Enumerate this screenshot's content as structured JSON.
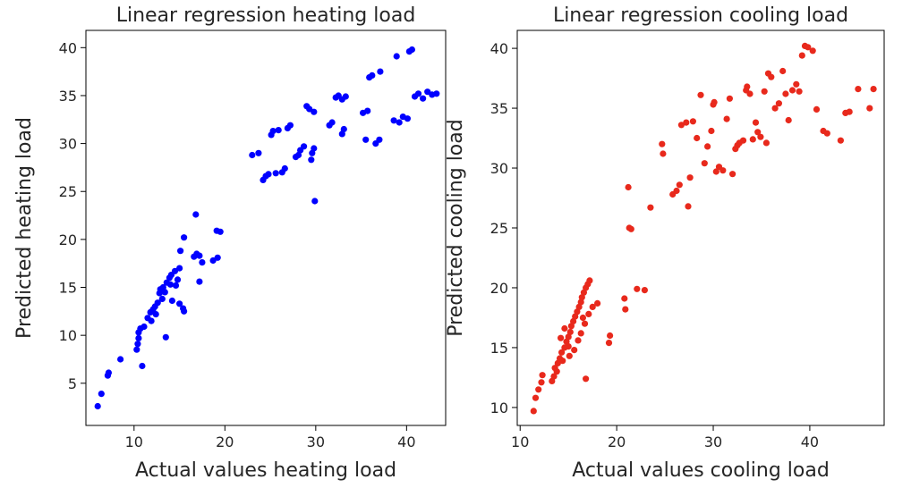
{
  "chart_data": [
    {
      "type": "scatter",
      "title": "Linear regression heating load",
      "xlabel": "Actual values heating load",
      "ylabel": "Predicted heating load",
      "xlim": [
        4.7,
        44.3
      ],
      "ylim": [
        0.6,
        41.8
      ],
      "xticks": [
        10,
        20,
        30,
        40
      ],
      "yticks": [
        5,
        10,
        15,
        20,
        25,
        30,
        35,
        40
      ],
      "grid": false,
      "color": "#0000ff",
      "series": [
        {
          "points": [
            [
              6.0,
              2.6
            ],
            [
              6.4,
              3.9
            ],
            [
              7.1,
              5.8
            ],
            [
              7.2,
              6.1
            ],
            [
              8.5,
              7.5
            ],
            [
              10.3,
              8.5
            ],
            [
              10.4,
              9.1
            ],
            [
              10.5,
              9.7
            ],
            [
              10.9,
              6.8
            ],
            [
              10.5,
              10.3
            ],
            [
              10.7,
              10.7
            ],
            [
              11.1,
              10.9
            ],
            [
              11.5,
              11.8
            ],
            [
              11.8,
              12.4
            ],
            [
              12.1,
              12.7
            ],
            [
              12.3,
              13.0
            ],
            [
              12.6,
              13.4
            ],
            [
              12.8,
              14.4
            ],
            [
              12.9,
              14.8
            ],
            [
              13.2,
              15.0
            ],
            [
              13.6,
              15.5
            ],
            [
              13.9,
              16.0
            ],
            [
              14.1,
              16.3
            ],
            [
              14.5,
              16.7
            ],
            [
              14.8,
              15.8
            ],
            [
              14.0,
              15.3
            ],
            [
              13.4,
              14.5
            ],
            [
              13.5,
              9.8
            ],
            [
              14.2,
              13.6
            ],
            [
              15.0,
              13.3
            ],
            [
              15.4,
              12.8
            ],
            [
              15.5,
              12.5
            ],
            [
              15.0,
              17.0
            ],
            [
              15.1,
              18.8
            ],
            [
              15.5,
              20.2
            ],
            [
              16.6,
              18.2
            ],
            [
              16.9,
              18.5
            ],
            [
              17.2,
              18.3
            ],
            [
              17.5,
              17.6
            ],
            [
              17.2,
              15.6
            ],
            [
              16.8,
              22.6
            ],
            [
              18.7,
              17.8
            ],
            [
              19.2,
              18.1
            ],
            [
              19.1,
              20.9
            ],
            [
              19.5,
              20.8
            ],
            [
              12.4,
              12.2
            ],
            [
              11.9,
              11.5
            ],
            [
              13.1,
              13.8
            ],
            [
              14.6,
              15.2
            ],
            [
              23.0,
              28.8
            ],
            [
              23.7,
              29.0
            ],
            [
              24.2,
              26.2
            ],
            [
              24.5,
              26.6
            ],
            [
              24.8,
              26.8
            ],
            [
              25.1,
              30.9
            ],
            [
              25.3,
              31.3
            ],
            [
              25.6,
              26.9
            ],
            [
              25.9,
              31.4
            ],
            [
              26.3,
              27.0
            ],
            [
              26.6,
              27.4
            ],
            [
              26.9,
              31.6
            ],
            [
              27.2,
              31.9
            ],
            [
              27.8,
              28.6
            ],
            [
              28.1,
              28.8
            ],
            [
              28.3,
              29.3
            ],
            [
              28.7,
              29.7
            ],
            [
              29.0,
              33.9
            ],
            [
              29.3,
              33.6
            ],
            [
              29.5,
              28.3
            ],
            [
              29.6,
              29.0
            ],
            [
              29.8,
              29.5
            ],
            [
              29.9,
              24.0
            ],
            [
              29.8,
              33.3
            ],
            [
              31.5,
              31.9
            ],
            [
              31.8,
              32.2
            ],
            [
              32.2,
              34.8
            ],
            [
              32.5,
              35.0
            ],
            [
              32.9,
              34.6
            ],
            [
              33.1,
              31.5
            ],
            [
              32.9,
              31.0
            ],
            [
              33.3,
              34.9
            ],
            [
              35.2,
              33.2
            ],
            [
              35.5,
              30.4
            ],
            [
              35.7,
              33.4
            ],
            [
              35.9,
              36.9
            ],
            [
              36.2,
              37.1
            ],
            [
              36.6,
              30.0
            ],
            [
              37.0,
              30.4
            ],
            [
              37.1,
              37.5
            ],
            [
              38.6,
              32.4
            ],
            [
              38.9,
              39.1
            ],
            [
              39.2,
              32.2
            ],
            [
              39.6,
              32.8
            ],
            [
              40.1,
              32.6
            ],
            [
              40.3,
              39.6
            ],
            [
              40.6,
              39.8
            ],
            [
              40.9,
              34.9
            ],
            [
              41.3,
              35.2
            ],
            [
              41.8,
              34.7
            ],
            [
              42.3,
              35.4
            ],
            [
              42.8,
              35.1
            ],
            [
              43.3,
              35.2
            ]
          ]
        }
      ]
    },
    {
      "type": "scatter",
      "title": "Linear regression cooling load",
      "xlabel": "Actual values cooling load",
      "ylabel": "Predicted cooling load",
      "xlim": [
        9.7,
        47.7
      ],
      "ylim": [
        8.5,
        41.5
      ],
      "xticks": [
        10,
        20,
        30,
        40
      ],
      "yticks": [
        10,
        15,
        20,
        25,
        30,
        35,
        40
      ],
      "grid": false,
      "color": "#e8291c",
      "series": [
        {
          "points": [
            [
              11.4,
              9.7
            ],
            [
              11.6,
              10.8
            ],
            [
              11.9,
              11.5
            ],
            [
              12.2,
              12.1
            ],
            [
              12.3,
              12.7
            ],
            [
              13.3,
              12.2
            ],
            [
              13.5,
              12.6
            ],
            [
              13.6,
              13.3
            ],
            [
              13.9,
              13.7
            ],
            [
              14.1,
              14.1
            ],
            [
              14.3,
              14.6
            ],
            [
              14.6,
              15.0
            ],
            [
              14.8,
              15.5
            ],
            [
              15.0,
              15.9
            ],
            [
              15.2,
              16.3
            ],
            [
              15.3,
              16.8
            ],
            [
              15.5,
              17.2
            ],
            [
              15.7,
              17.6
            ],
            [
              15.9,
              18.0
            ],
            [
              16.1,
              18.4
            ],
            [
              16.3,
              18.8
            ],
            [
              16.4,
              19.2
            ],
            [
              16.6,
              19.6
            ],
            [
              16.8,
              20.0
            ],
            [
              17.0,
              20.3
            ],
            [
              17.2,
              20.6
            ],
            [
              14.2,
              15.8
            ],
            [
              14.6,
              16.6
            ],
            [
              15.1,
              14.3
            ],
            [
              15.6,
              14.8
            ],
            [
              16.0,
              15.6
            ],
            [
              16.3,
              16.2
            ],
            [
              16.7,
              17.0
            ],
            [
              17.1,
              17.8
            ],
            [
              17.5,
              18.4
            ],
            [
              18.0,
              18.7
            ],
            [
              13.8,
              13.0
            ],
            [
              14.4,
              13.9
            ],
            [
              15.0,
              15.1
            ],
            [
              16.5,
              17.5
            ],
            [
              16.8,
              12.4
            ],
            [
              19.2,
              15.4
            ],
            [
              19.3,
              16.0
            ],
            [
              20.9,
              18.2
            ],
            [
              20.8,
              19.1
            ],
            [
              21.2,
              28.4
            ],
            [
              21.3,
              25.0
            ],
            [
              21.5,
              24.9
            ],
            [
              22.1,
              19.9
            ],
            [
              22.9,
              19.8
            ],
            [
              23.5,
              26.7
            ],
            [
              24.7,
              32.0
            ],
            [
              24.8,
              31.2
            ],
            [
              25.8,
              27.8
            ],
            [
              26.2,
              28.1
            ],
            [
              26.5,
              28.6
            ],
            [
              26.7,
              33.6
            ],
            [
              27.2,
              33.8
            ],
            [
              27.4,
              26.8
            ],
            [
              27.6,
              29.2
            ],
            [
              27.9,
              33.9
            ],
            [
              28.3,
              32.5
            ],
            [
              28.7,
              36.1
            ],
            [
              29.1,
              30.4
            ],
            [
              29.4,
              31.8
            ],
            [
              29.8,
              33.1
            ],
            [
              30.0,
              35.3
            ],
            [
              30.1,
              35.5
            ],
            [
              30.3,
              29.7
            ],
            [
              30.6,
              30.1
            ],
            [
              31.0,
              29.8
            ],
            [
              31.4,
              34.1
            ],
            [
              31.7,
              35.8
            ],
            [
              32.0,
              29.5
            ],
            [
              32.3,
              31.6
            ],
            [
              32.7,
              32.1
            ],
            [
              33.1,
              32.3
            ],
            [
              33.4,
              36.5
            ],
            [
              33.5,
              36.8
            ],
            [
              33.8,
              36.2
            ],
            [
              34.1,
              32.4
            ],
            [
              34.4,
              33.8
            ],
            [
              34.9,
              32.6
            ],
            [
              35.3,
              36.4
            ],
            [
              35.7,
              37.9
            ],
            [
              36.0,
              37.6
            ],
            [
              36.4,
              35.0
            ],
            [
              36.8,
              35.4
            ],
            [
              37.2,
              38.1
            ],
            [
              37.5,
              36.2
            ],
            [
              37.8,
              34.0
            ],
            [
              38.2,
              36.5
            ],
            [
              38.6,
              37.0
            ],
            [
              38.9,
              36.4
            ],
            [
              39.2,
              39.4
            ],
            [
              39.5,
              40.2
            ],
            [
              39.8,
              40.1
            ],
            [
              40.3,
              39.8
            ],
            [
              40.7,
              34.9
            ],
            [
              41.4,
              33.1
            ],
            [
              41.8,
              32.9
            ],
            [
              43.2,
              32.3
            ],
            [
              43.7,
              34.6
            ],
            [
              44.1,
              34.7
            ],
            [
              45.0,
              36.6
            ],
            [
              46.2,
              35.0
            ],
            [
              46.6,
              36.6
            ],
            [
              35.5,
              32.1
            ],
            [
              34.6,
              33.0
            ],
            [
              32.5,
              31.9
            ]
          ]
        }
      ]
    }
  ]
}
